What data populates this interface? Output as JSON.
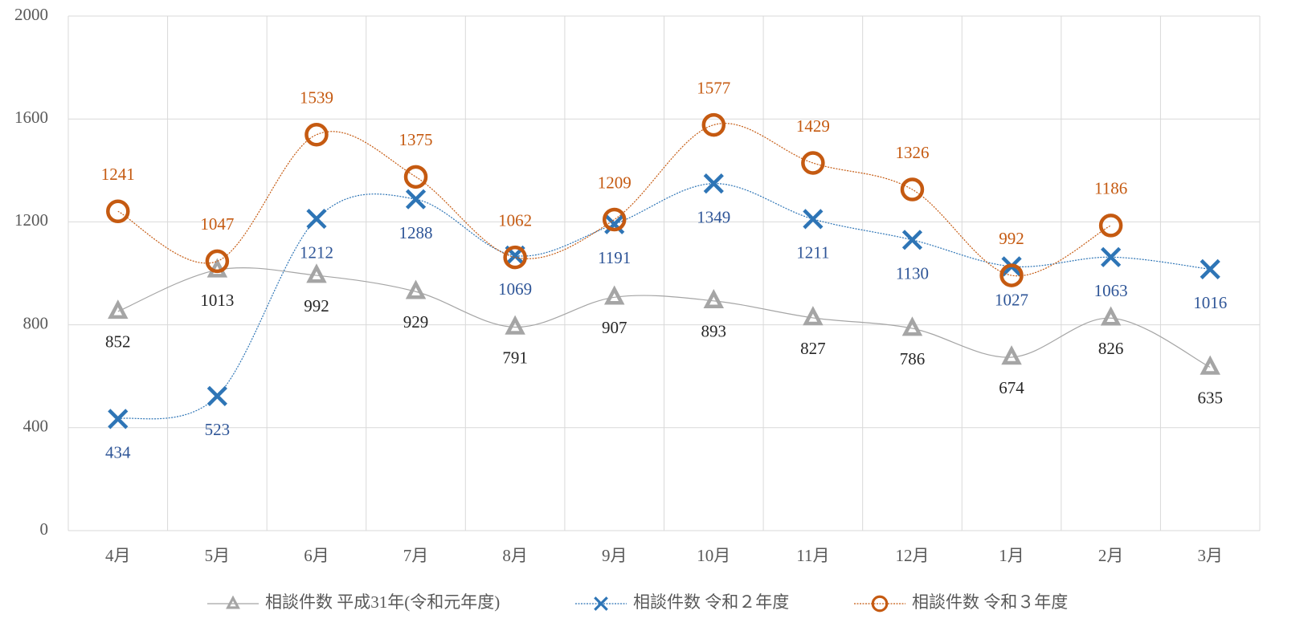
{
  "chart_data": {
    "type": "line",
    "categories": [
      "4月",
      "5月",
      "6月",
      "7月",
      "8月",
      "9月",
      "10月",
      "11月",
      "12月",
      "1月",
      "2月",
      "3月"
    ],
    "series": [
      {
        "name": "相談件数 平成31年(令和元年度)",
        "color": "#a5a5a5",
        "marker": "triangle",
        "values": [
          852,
          1013,
          992,
          929,
          791,
          907,
          893,
          827,
          786,
          674,
          826,
          635
        ]
      },
      {
        "name": "相談件数 令和２年度",
        "color": "#2e75b6",
        "marker": "x",
        "values": [
          434,
          523,
          1212,
          1288,
          1069,
          1191,
          1349,
          1211,
          1130,
          1027,
          1063,
          1016
        ]
      },
      {
        "name": "相談件数 令和３年度",
        "color": "#c55a11",
        "marker": "circle",
        "values": [
          1241,
          1047,
          1539,
          1375,
          1062,
          1209,
          1577,
          1429,
          1326,
          992,
          1186,
          null
        ]
      }
    ],
    "ylim": [
      0,
      2000
    ],
    "yticks": [
      0,
      400,
      800,
      1200,
      1600,
      2000
    ],
    "grid": true,
    "smooth": true,
    "legend": "bottom"
  }
}
